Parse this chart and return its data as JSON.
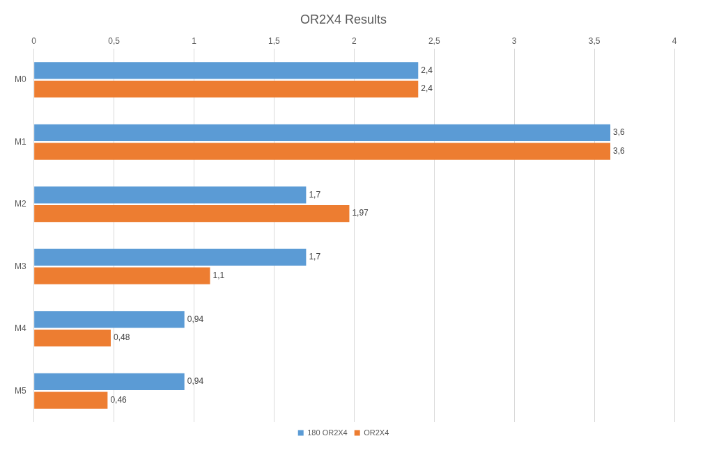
{
  "chart_data": {
    "type": "bar",
    "orientation": "horizontal",
    "title": "OR2X4 Results",
    "categories": [
      "M0",
      "M1",
      "M2",
      "M3",
      "M4",
      "M5"
    ],
    "series": [
      {
        "name": "180 OR2X4",
        "color": "#5b9bd5",
        "values": [
          2.4,
          3.6,
          1.7,
          1.7,
          0.94,
          0.94
        ],
        "value_labels": [
          "2,4",
          "3,6",
          "1,7",
          "1,7",
          "0,94",
          "0,94"
        ]
      },
      {
        "name": "OR2X4",
        "color": "#ed7d31",
        "values": [
          2.4,
          3.6,
          1.97,
          1.1,
          0.48,
          0.46
        ],
        "value_labels": [
          "2,4",
          "3,6",
          "1,97",
          "1,1",
          "0,48",
          "0,46"
        ]
      }
    ],
    "xlim": [
      0,
      4
    ],
    "xticks": [
      0,
      {
        "value": 0.5,
        "label": "0,5"
      },
      1,
      {
        "value": 1.5,
        "label": "1,5"
      },
      2,
      {
        "value": 2.5,
        "label": "2,5"
      },
      3,
      {
        "value": 3.5,
        "label": "3,5"
      },
      4
    ],
    "grid": "x",
    "legend": "bottom"
  }
}
